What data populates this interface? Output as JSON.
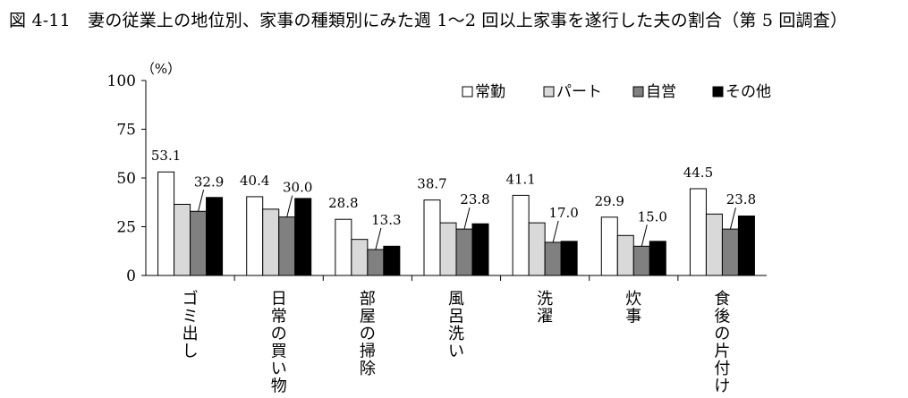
{
  "title": "図 4-11　妻の従業上の地位別、家事の種類別にみた週 1～2 回以上家事を遂行した夫の割合（第 5 回調査）",
  "chart_data": {
    "type": "bar",
    "title": "図 4-11　妻の従業上の地位別、家事の種類別にみた週 1～2 回以上家事を遂行した夫の割合（第 5 回調査）",
    "ylabel": "（%）",
    "xlabel": "",
    "ylim": [
      0,
      100
    ],
    "yticks": [
      0,
      25,
      50,
      75,
      100
    ],
    "legend_position": "top-right",
    "categories": [
      "ゴミ出し",
      "日常の買い物",
      "部屋の掃除",
      "風呂洗い",
      "洗濯",
      "炊事",
      "食後の片付け"
    ],
    "series": [
      {
        "name": "常勤",
        "color": "#ffffff",
        "values": [
          53.1,
          40.4,
          28.8,
          38.7,
          41.1,
          29.9,
          44.5
        ],
        "labeled": true
      },
      {
        "name": "パート",
        "color": "#d9d9d9",
        "values": [
          36.5,
          34.0,
          18.5,
          27.0,
          27.0,
          20.5,
          31.5
        ],
        "labeled": false
      },
      {
        "name": "自営",
        "color": "#808080",
        "values": [
          32.9,
          30.0,
          13.3,
          23.8,
          17.0,
          15.0,
          23.8
        ],
        "labeled": true
      },
      {
        "name": "その他",
        "color": "#000000",
        "values": [
          40.0,
          39.5,
          15.0,
          26.5,
          17.5,
          17.5,
          30.5
        ],
        "labeled": false
      }
    ]
  }
}
